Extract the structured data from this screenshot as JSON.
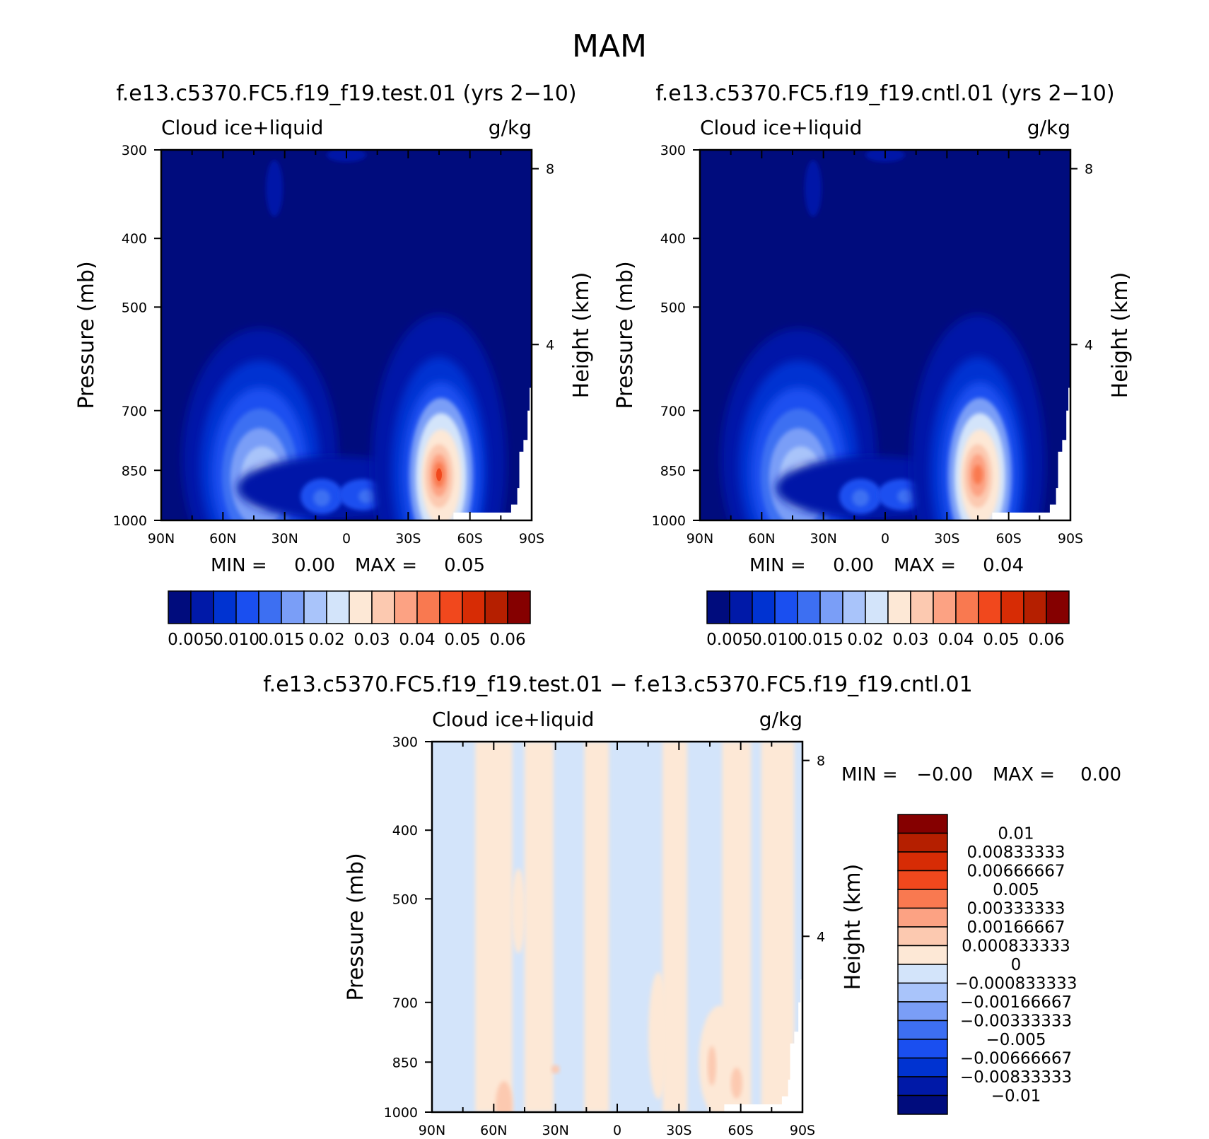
{
  "figure": {
    "season": "MAM",
    "colors": {
      "abs_scale": [
        "#000c7d",
        "#0019a8",
        "#0033d1",
        "#1a4ff0",
        "#3d6ff2",
        "#7a9ef7",
        "#a9c4fa",
        "#d3e4fa",
        "#fde8d6",
        "#fcc9b0",
        "#fca283",
        "#f97950",
        "#f1481d",
        "#d72c05",
        "#b51f00",
        "#850000"
      ],
      "diff_scale": [
        "#000c7d",
        "#0019a8",
        "#0033d1",
        "#1a4ff0",
        "#3d6ff2",
        "#7a9ef7",
        "#a9c4fa",
        "#d3e4fa",
        "#fde8d6",
        "#fcc9b0",
        "#fca283",
        "#f97950",
        "#f1481d",
        "#d72c05",
        "#b51f00",
        "#850000"
      ]
    }
  },
  "chart_data": [
    {
      "type": "contour",
      "title": "f.e13.c5370.FC5.f19_f19.test.01 (yrs 2−10)",
      "left_label": "Cloud  ice+liquid",
      "right_label": "g/kg",
      "ylabel": "Pressure (mb)",
      "ylabel_right": "Height (km)",
      "x_ticks": [
        "90N",
        "60N",
        "30N",
        "0",
        "30S",
        "60S",
        "90S"
      ],
      "y_ticks": [
        "300",
        "400",
        "500",
        "700",
        "850",
        "1000"
      ],
      "y_ticks_right": [
        "8",
        "4"
      ],
      "ylim": [
        1000,
        300
      ],
      "min_label": "MIN =",
      "min_value": "0.00",
      "max_label": "MAX =",
      "max_value": "0.05",
      "colorbar_labels": [
        "0.005",
        "0.010",
        "0.015",
        "0.02",
        "0.03",
        "0.04",
        "0.05",
        "0.06"
      ],
      "maxima": [
        {
          "lat": -45,
          "p": 860,
          "peak": 0.05
        },
        {
          "lat": 40,
          "p": 870,
          "peak": 0.03
        }
      ]
    },
    {
      "type": "contour",
      "title": "f.e13.c5370.FC5.f19_f19.cntl.01 (yrs 2−10)",
      "left_label": "Cloud  ice+liquid",
      "right_label": "g/kg",
      "ylabel": "Pressure (mb)",
      "ylabel_right": "Height (km)",
      "x_ticks": [
        "90N",
        "60N",
        "30N",
        "0",
        "30S",
        "60S",
        "90S"
      ],
      "y_ticks": [
        "300",
        "400",
        "500",
        "700",
        "850",
        "1000"
      ],
      "y_ticks_right": [
        "8",
        "4"
      ],
      "ylim": [
        1000,
        300
      ],
      "min_label": "MIN =",
      "min_value": "0.00",
      "max_label": "MAX =",
      "max_value": "0.04",
      "colorbar_labels": [
        "0.005",
        "0.010",
        "0.015",
        "0.02",
        "0.03",
        "0.04",
        "0.05",
        "0.06"
      ],
      "maxima": [
        {
          "lat": -45,
          "p": 860,
          "peak": 0.045
        },
        {
          "lat": 40,
          "p": 870,
          "peak": 0.028
        }
      ]
    },
    {
      "type": "contour",
      "title": "f.e13.c5370.FC5.f19_f19.test.01 − f.e13.c5370.FC5.f19_f19.cntl.01",
      "left_label": "Cloud  ice+liquid",
      "right_label": "g/kg",
      "ylabel": "Pressure (mb)",
      "ylabel_right": "Height (km)",
      "x_ticks": [
        "90N",
        "60N",
        "30N",
        "0",
        "30S",
        "60S",
        "90S"
      ],
      "y_ticks": [
        "300",
        "400",
        "500",
        "700",
        "850",
        "1000"
      ],
      "y_ticks_right": [
        "8",
        "4"
      ],
      "ylim": [
        1000,
        300
      ],
      "min_label": "MIN =",
      "min_value": "−0.00",
      "max_label": "MAX =",
      "max_value": "0.00",
      "colorbar_labels": [
        "0.01",
        "0.00833333",
        "0.00666667",
        "0.005",
        "0.00333333",
        "0.00166667",
        "0.000833333",
        "0",
        "−0.000833333",
        "−0.00166667",
        "−0.00333333",
        "−0.005",
        "−0.00666667",
        "−0.00833333",
        "−0.01"
      ]
    }
  ]
}
